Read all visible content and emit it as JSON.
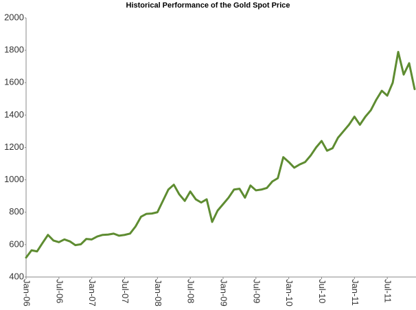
{
  "chart_data": {
    "type": "line",
    "title": "Historical Performance of the Gold Spot Price",
    "categories": [
      "Jan-06",
      null,
      null,
      null,
      null,
      null,
      "Jul-06",
      null,
      null,
      null,
      null,
      null,
      "Jan-07",
      null,
      null,
      null,
      null,
      null,
      "Jul-07",
      null,
      null,
      null,
      null,
      null,
      "Jan-08",
      null,
      null,
      null,
      null,
      null,
      "Jul-08",
      null,
      null,
      null,
      null,
      null,
      "Jan-09",
      null,
      null,
      null,
      null,
      null,
      "Jul-09",
      null,
      null,
      null,
      null,
      null,
      "Jan-10",
      null,
      null,
      null,
      null,
      null,
      "Jul-10",
      null,
      null,
      null,
      null,
      null,
      "Jan-11",
      null,
      null,
      null,
      null,
      null,
      "Jul-11",
      null,
      null,
      null,
      null,
      null
    ],
    "series": [
      {
        "name": "Gold Spot Price",
        "color": "#5e8c31",
        "values": [
          520,
          565,
          558,
          610,
          660,
          625,
          615,
          632,
          620,
          597,
          602,
          635,
          632,
          650,
          660,
          662,
          668,
          655,
          660,
          668,
          712,
          772,
          790,
          792,
          800,
          870,
          940,
          970,
          910,
          870,
          928,
          880,
          860,
          880,
          740,
          810,
          850,
          890,
          940,
          945,
          890,
          965,
          935,
          940,
          950,
          990,
          1010,
          1140,
          1110,
          1075,
          1095,
          1110,
          1150,
          1200,
          1240,
          1180,
          1195,
          1260,
          1300,
          1340,
          1390,
          1340,
          1390,
          1430,
          1495,
          1550,
          1520,
          1600,
          1790,
          1650,
          1720,
          1560
        ]
      }
    ],
    "ylim": [
      400,
      2000
    ],
    "yticks": [
      400,
      600,
      800,
      1000,
      1200,
      1400,
      1600,
      1800,
      2000
    ],
    "grid": false
  }
}
